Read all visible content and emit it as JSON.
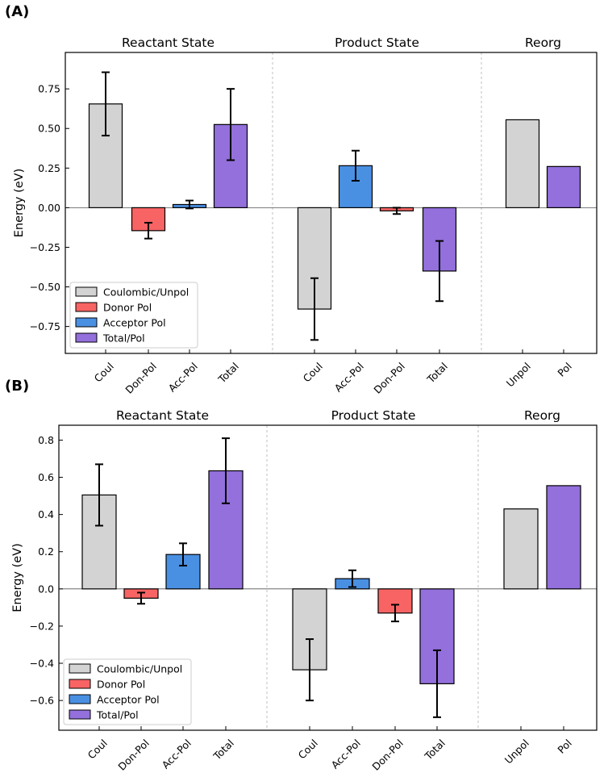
{
  "chart_data": [
    {
      "type": "bar",
      "panel_label": "(A)",
      "ylabel": "Energy (eV)",
      "ylim": [
        -0.92,
        0.98
      ],
      "yticks": [
        0.75,
        0.5,
        0.25,
        0.0,
        -0.25,
        -0.5,
        -0.75
      ],
      "ytick_labels": [
        "0.75",
        "0.50",
        "0.25",
        "0.00",
        "−0.25",
        "−0.50",
        "−0.75"
      ],
      "groups": [
        {
          "title": "Reactant State",
          "bars": [
            {
              "label": "Coul",
              "value": 0.655,
              "error": 0.2,
              "series": "Coulombic/Unpol"
            },
            {
              "label": "Don-Pol",
              "value": -0.145,
              "error": 0.05,
              "series": "Donor Pol"
            },
            {
              "label": "Acc-Pol",
              "value": 0.02,
              "error": 0.025,
              "series": "Acceptor Pol"
            },
            {
              "label": "Total",
              "value": 0.525,
              "error": 0.225,
              "series": "Total/Pol"
            }
          ]
        },
        {
          "title": "Product State",
          "bars": [
            {
              "label": "Coul",
              "value": -0.64,
              "error": 0.195,
              "series": "Coulombic/Unpol"
            },
            {
              "label": "Acc-Pol",
              "value": 0.265,
              "error": 0.095,
              "series": "Acceptor Pol"
            },
            {
              "label": "Don-Pol",
              "value": -0.02,
              "error": 0.02,
              "series": "Donor Pol"
            },
            {
              "label": "Total",
              "value": -0.4,
              "error": 0.19,
              "series": "Total/Pol"
            }
          ]
        },
        {
          "title": "Reorg",
          "bars": [
            {
              "label": "Unpol",
              "value": 0.555,
              "error": null,
              "series": "Coulombic/Unpol"
            },
            {
              "label": "Pol",
              "value": 0.26,
              "error": null,
              "series": "Total/Pol"
            }
          ]
        }
      ],
      "legend": [
        "Coulombic/Unpol",
        "Donor Pol",
        "Acceptor Pol",
        "Total/Pol"
      ],
      "legend_position": "lower-left"
    },
    {
      "type": "bar",
      "panel_label": "(B)",
      "ylabel": "Energy (eV)",
      "ylim": [
        -0.76,
        0.88
      ],
      "yticks": [
        0.8,
        0.6,
        0.4,
        0.2,
        0.0,
        -0.2,
        -0.4,
        -0.6
      ],
      "ytick_labels": [
        "0.8",
        "0.6",
        "0.4",
        "0.2",
        "0.0",
        "−0.2",
        "−0.4",
        "−0.6"
      ],
      "groups": [
        {
          "title": "Reactant State",
          "bars": [
            {
              "label": "Coul",
              "value": 0.505,
              "error": 0.165,
              "series": "Coulombic/Unpol"
            },
            {
              "label": "Don-Pol",
              "value": -0.05,
              "error": 0.03,
              "series": "Donor Pol"
            },
            {
              "label": "Acc-Pol",
              "value": 0.185,
              "error": 0.06,
              "series": "Acceptor Pol"
            },
            {
              "label": "Total",
              "value": 0.635,
              "error": 0.175,
              "series": "Total/Pol"
            }
          ]
        },
        {
          "title": "Product State",
          "bars": [
            {
              "label": "Coul",
              "value": -0.435,
              "error": 0.165,
              "series": "Coulombic/Unpol"
            },
            {
              "label": "Acc-Pol",
              "value": 0.055,
              "error": 0.045,
              "series": "Acceptor Pol"
            },
            {
              "label": "Don-Pol",
              "value": -0.13,
              "error": 0.045,
              "series": "Donor Pol"
            },
            {
              "label": "Total",
              "value": -0.51,
              "error": 0.18,
              "series": "Total/Pol"
            }
          ]
        },
        {
          "title": "Reorg",
          "bars": [
            {
              "label": "Unpol",
              "value": 0.43,
              "error": null,
              "series": "Coulombic/Unpol"
            },
            {
              "label": "Pol",
              "value": 0.555,
              "error": null,
              "series": "Total/Pol"
            }
          ]
        }
      ],
      "legend": [
        "Coulombic/Unpol",
        "Donor Pol",
        "Acceptor Pol",
        "Total/Pol"
      ],
      "legend_position": "lower-left"
    }
  ],
  "colors": {
    "Coulombic/Unpol": "#d3d3d3",
    "Donor Pol": "#f86464",
    "Acceptor Pol": "#4a90e2",
    "Total/Pol": "#9370db",
    "axis": "#000000",
    "separator": "#b0b0b0"
  }
}
